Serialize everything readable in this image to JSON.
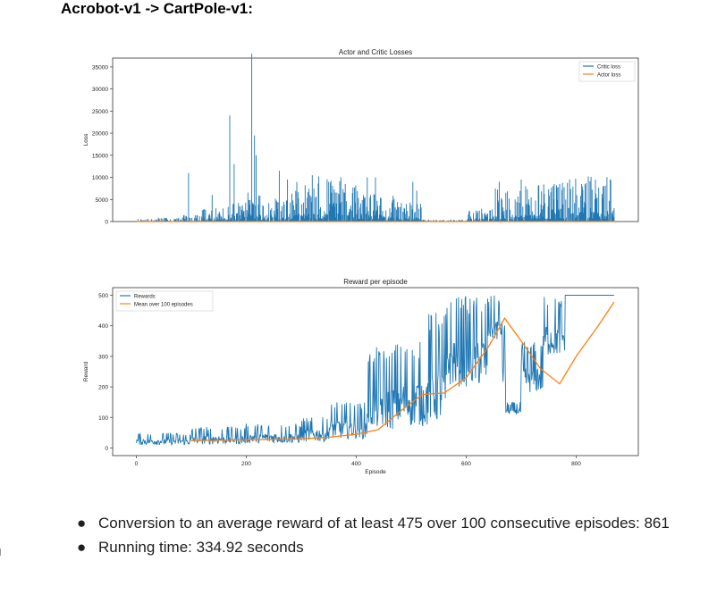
{
  "heading": "Acrobot-v1 -> CartPole-v1:",
  "bullets": [
    "Conversion to an average reward of at least 475 over 100 consecutive episodes: 861",
    "Running time: 334.92 seconds"
  ],
  "bullet_glyph": "●",
  "colors": {
    "blue": "#1f77b4",
    "orange": "#ff7f0e"
  },
  "chart_data": [
    {
      "type": "bar",
      "title": "Actor and Critic Losses",
      "xlabel": "",
      "ylabel": "Loss",
      "ylim": [
        0,
        37000
      ],
      "xlim": [
        -43,
        913
      ],
      "yticks": [
        0,
        5000,
        10000,
        15000,
        20000,
        25000,
        30000,
        35000
      ],
      "xticks": [],
      "legend_position": "top-right",
      "series": [
        {
          "name": "Critic loss",
          "color": "#1f77b4",
          "segments": [
            {
              "x0": 0,
              "x1": 40,
              "y": 400
            },
            {
              "x0": 40,
              "x1": 80,
              "y": 600
            },
            {
              "x0": 80,
              "x1": 120,
              "y": 1000
            },
            {
              "x0": 120,
              "x1": 160,
              "y": 2000
            },
            {
              "x0": 160,
              "x1": 200,
              "y": 3000
            },
            {
              "x0": 200,
              "x1": 240,
              "y": 4500
            },
            {
              "x0": 240,
              "x1": 280,
              "y": 3500
            },
            {
              "x0": 280,
              "x1": 320,
              "y": 6000
            },
            {
              "x0": 320,
              "x1": 360,
              "y": 7000
            },
            {
              "x0": 360,
              "x1": 400,
              "y": 6500
            },
            {
              "x0": 400,
              "x1": 440,
              "y": 5000
            },
            {
              "x0": 440,
              "x1": 470,
              "y": 4000
            },
            {
              "x0": 470,
              "x1": 520,
              "y": 3000
            },
            {
              "x0": 520,
              "x1": 600,
              "y": 300
            },
            {
              "x0": 600,
              "x1": 650,
              "y": 2000
            },
            {
              "x0": 650,
              "x1": 700,
              "y": 5000
            },
            {
              "x0": 700,
              "x1": 760,
              "y": 6000
            },
            {
              "x0": 760,
              "x1": 800,
              "y": 6500
            },
            {
              "x0": 800,
              "x1": 870,
              "y": 7000
            }
          ],
          "peaks": [
            {
              "x": 95,
              "y": 11000
            },
            {
              "x": 138,
              "y": 6000
            },
            {
              "x": 170,
              "y": 24000
            },
            {
              "x": 178,
              "y": 13000
            },
            {
              "x": 210,
              "y": 38000
            },
            {
              "x": 215,
              "y": 19500
            },
            {
              "x": 218,
              "y": 15000
            },
            {
              "x": 260,
              "y": 11500
            },
            {
              "x": 275,
              "y": 9500
            },
            {
              "x": 320,
              "y": 10500
            },
            {
              "x": 350,
              "y": 9000
            },
            {
              "x": 372,
              "y": 10000
            },
            {
              "x": 420,
              "y": 10000
            },
            {
              "x": 435,
              "y": 10000
            },
            {
              "x": 503,
              "y": 9000
            },
            {
              "x": 510,
              "y": 7000
            },
            {
              "x": 660,
              "y": 9000
            },
            {
              "x": 700,
              "y": 9500
            },
            {
              "x": 760,
              "y": 8500
            },
            {
              "x": 810,
              "y": 8500
            },
            {
              "x": 850,
              "y": 8000
            }
          ]
        },
        {
          "name": "Actor loss",
          "color": "#ff7f0e",
          "y_const": 0
        }
      ]
    },
    {
      "type": "line",
      "title": "Reward per episode",
      "xlabel": "Episode",
      "ylabel": "Reward",
      "ylim": [
        -25,
        525
      ],
      "xlim": [
        -43,
        913
      ],
      "yticks": [
        0,
        100,
        200,
        300,
        400,
        500
      ],
      "xticks": [
        0,
        200,
        400,
        600,
        800
      ],
      "legend_position": "top-left",
      "series": [
        {
          "name": "Rewards",
          "color": "#1f77b4",
          "segments": [
            {
              "x0": 0,
              "x1": 100,
              "lo": 10,
              "hi": 50
            },
            {
              "x0": 100,
              "x1": 200,
              "lo": 12,
              "hi": 70
            },
            {
              "x0": 200,
              "x1": 300,
              "lo": 15,
              "hi": 80
            },
            {
              "x0": 300,
              "x1": 350,
              "lo": 20,
              "hi": 100
            },
            {
              "x0": 350,
              "x1": 420,
              "lo": 30,
              "hi": 150
            },
            {
              "x0": 420,
              "x1": 470,
              "lo": 60,
              "hi": 330
            },
            {
              "x0": 470,
              "x1": 530,
              "lo": 70,
              "hi": 350
            },
            {
              "x0": 530,
              "x1": 565,
              "lo": 80,
              "hi": 450
            },
            {
              "x0": 565,
              "x1": 640,
              "lo": 200,
              "hi": 500
            },
            {
              "x0": 640,
              "x1": 665,
              "lo": 350,
              "hi": 500
            },
            {
              "x0": 665,
              "x1": 672,
              "lo": 200,
              "hi": 420
            },
            {
              "x0": 672,
              "x1": 700,
              "lo": 110,
              "hi": 150
            },
            {
              "x0": 700,
              "x1": 740,
              "lo": 180,
              "hi": 350
            },
            {
              "x0": 740,
              "x1": 780,
              "lo": 300,
              "hi": 500
            },
            {
              "x0": 780,
              "x1": 870,
              "lo": 500,
              "hi": 500
            }
          ]
        },
        {
          "name": "Mean over 100 episodes",
          "color": "#ff7f0e",
          "x": [
            99,
            150,
            200,
            250,
            300,
            350,
            400,
            440,
            480,
            520,
            560,
            600,
            640,
            670,
            700,
            735,
            770,
            800,
            840,
            869
          ],
          "y": [
            24,
            25,
            27,
            28,
            30,
            35,
            45,
            60,
            120,
            175,
            180,
            230,
            330,
            425,
            350,
            260,
            210,
            300,
            400,
            478
          ]
        }
      ]
    }
  ]
}
